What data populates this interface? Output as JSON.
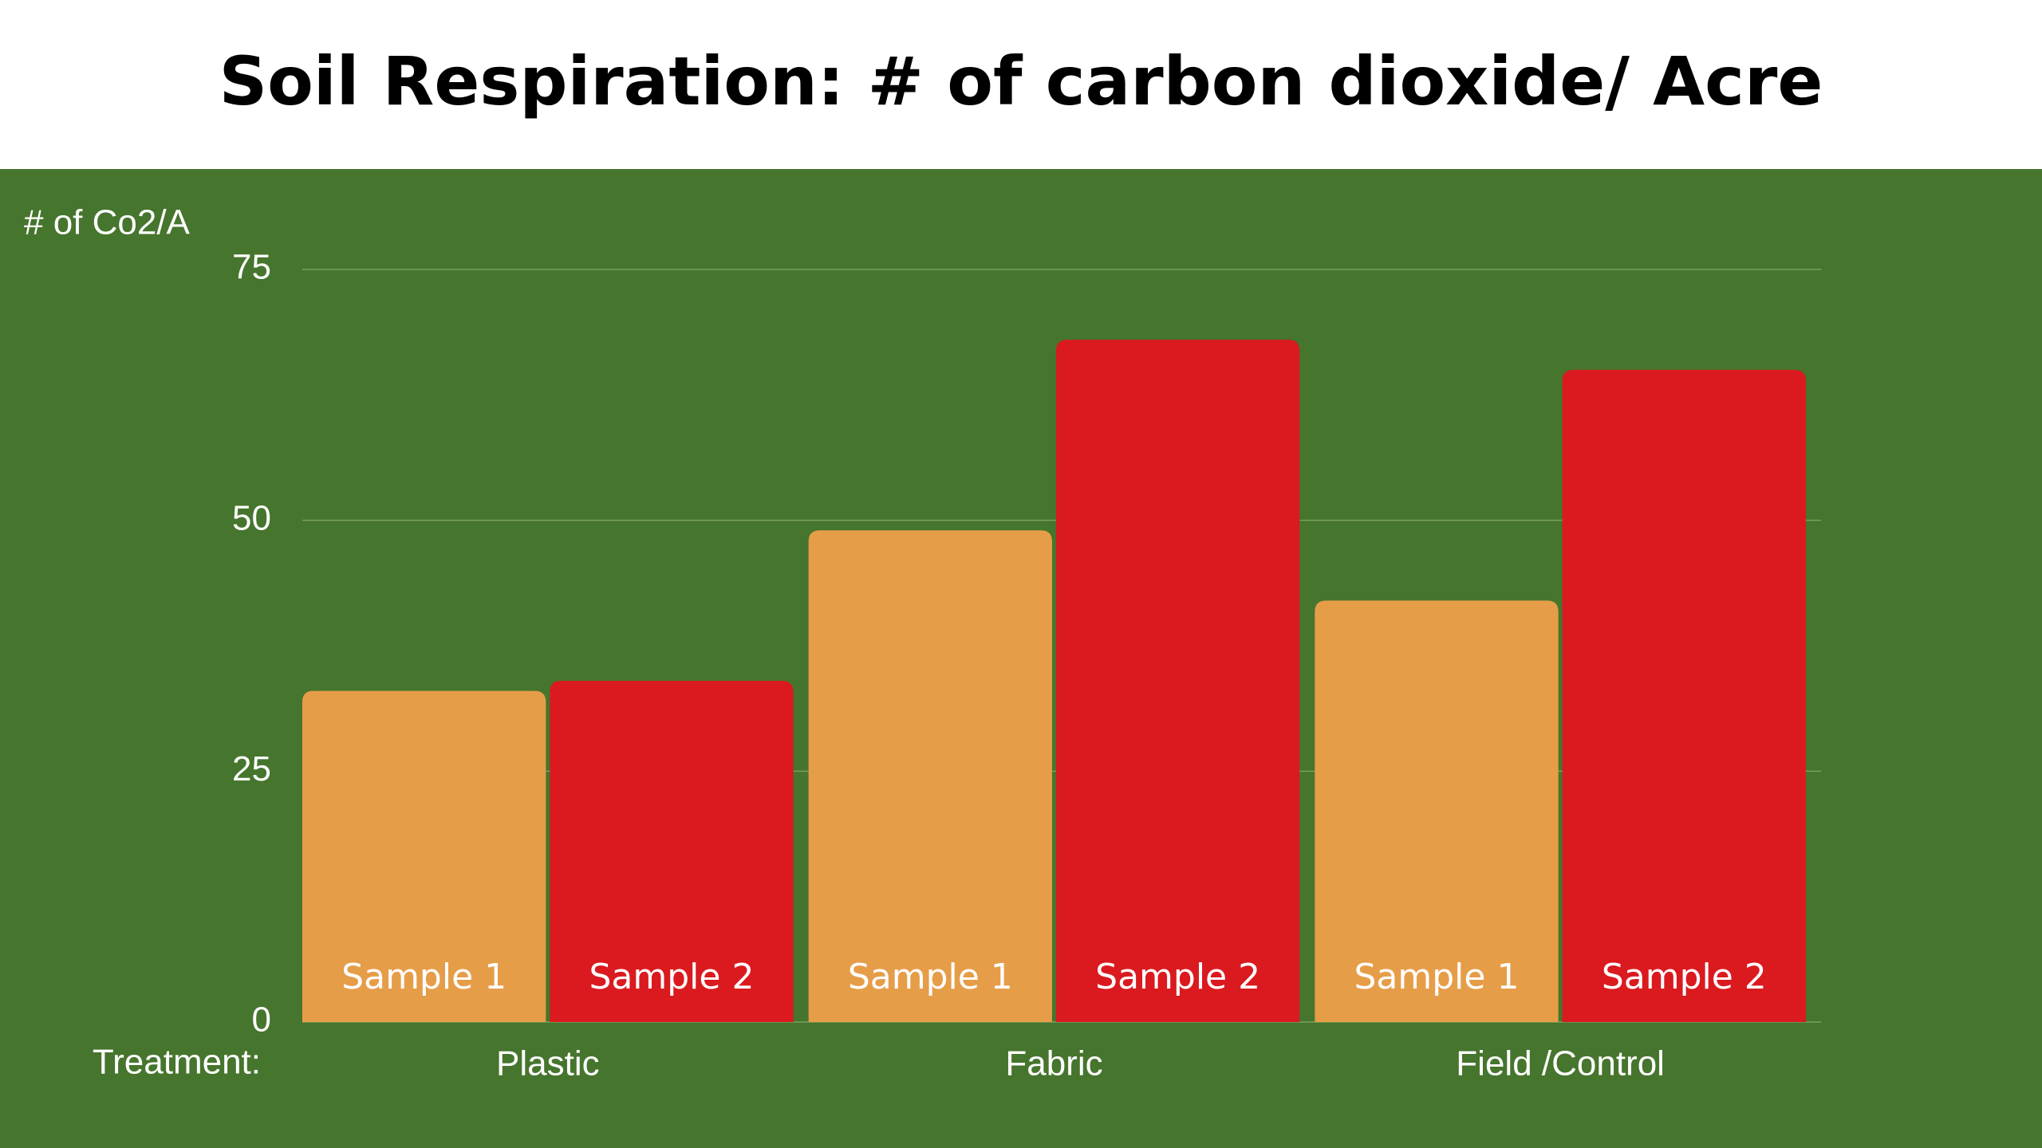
{
  "chart_data": {
    "type": "bar",
    "title": "Soil Respiration: # of carbon dioxide/ Acre",
    "y_label": "# of Co2/A",
    "x_label": "Treatment:",
    "categories": [
      "Plastic",
      "Fabric",
      "Field /Control"
    ],
    "series": [
      {
        "name": "Sample 1",
        "color": "#e69d48",
        "values": [
          33,
          49,
          42
        ]
      },
      {
        "name": "Sample 2",
        "color": "#da1a1f",
        "values": [
          34,
          68,
          65
        ]
      }
    ],
    "ylim": [
      0,
      75
    ],
    "yticks": [
      0,
      25,
      50,
      75
    ],
    "grid": true,
    "background": "#46752d"
  }
}
